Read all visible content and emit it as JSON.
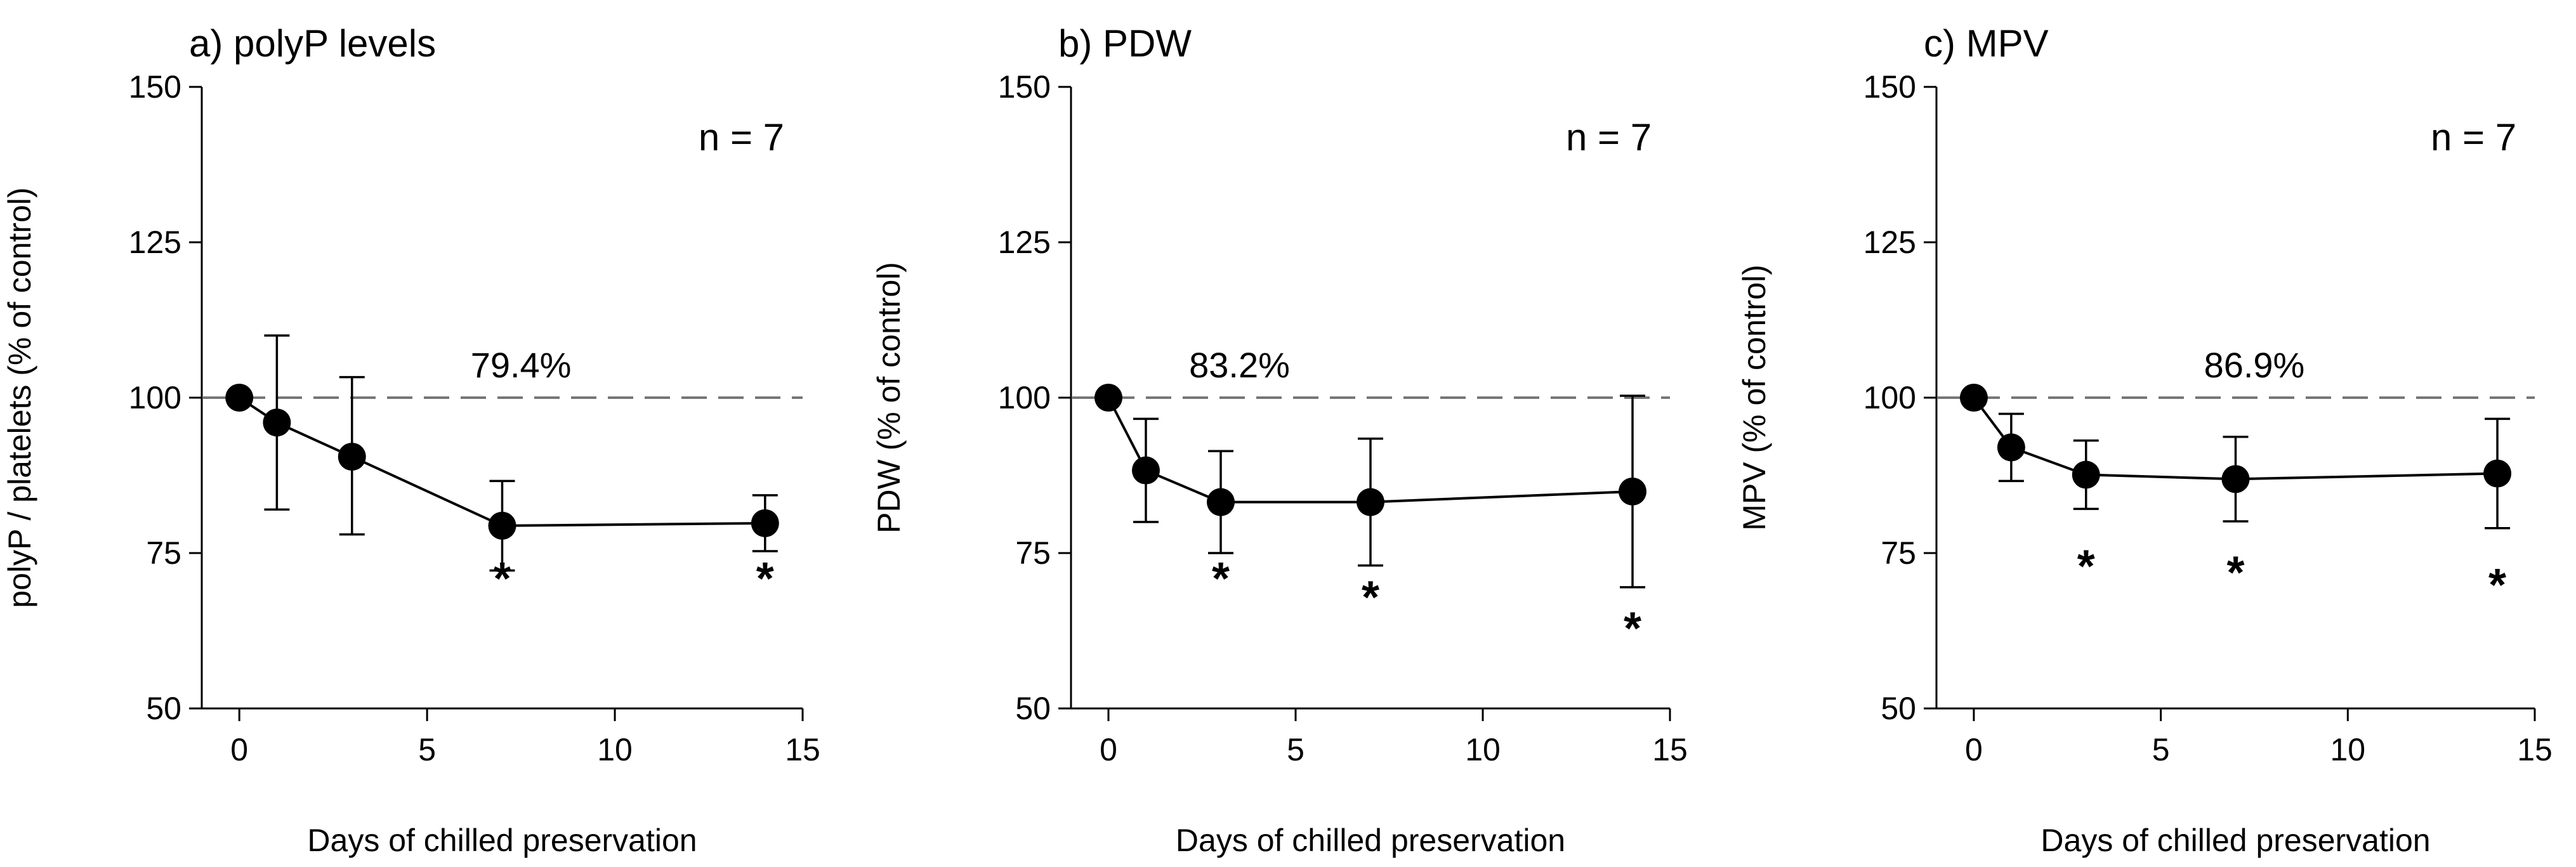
{
  "figure": {
    "shared_xlabel": "Days of chilled preservation"
  },
  "chart_data": [
    {
      "type": "line",
      "title": "a) polyP levels",
      "xlabel": "Days of chilled preservation",
      "ylabel": "polyP / platelets (% of control)",
      "xlim": [
        -1,
        15
      ],
      "ylim": [
        50,
        150
      ],
      "xticks": [
        0,
        5,
        10,
        15
      ],
      "yticks": [
        50,
        75,
        100,
        125,
        150
      ],
      "n_label": "n = 7",
      "reference_line": {
        "y": 100,
        "style": "dashed",
        "label": "79.4%",
        "label_x": 7.5
      },
      "series": [
        {
          "name": "polyP levels",
          "x": [
            0,
            1,
            3,
            7,
            14
          ],
          "y": [
            100,
            96,
            90.5,
            79.4,
            79.8
          ],
          "err_low": [
            0,
            14,
            12.5,
            7.2,
            4.5
          ],
          "err_high": [
            0,
            14,
            12.8,
            7.2,
            4.5
          ]
        }
      ],
      "significance": [
        {
          "x": 7,
          "y": 71,
          "label": "*"
        },
        {
          "x": 14,
          "y": 71,
          "label": "*"
        }
      ]
    },
    {
      "type": "line",
      "title": "b) PDW",
      "xlabel": "Days of chilled preservation",
      "ylabel": "PDW (% of control)",
      "xlim": [
        -1,
        15
      ],
      "ylim": [
        50,
        150
      ],
      "xticks": [
        0,
        5,
        10,
        15
      ],
      "yticks": [
        50,
        75,
        100,
        125,
        150
      ],
      "n_label": "n = 7",
      "reference_line": {
        "y": 100,
        "style": "dashed",
        "label": "83.2%",
        "label_x": 3.5
      },
      "series": [
        {
          "name": "PDW",
          "x": [
            0,
            1,
            3,
            7,
            14
          ],
          "y": [
            100,
            88.3,
            83.2,
            83.2,
            84.9
          ],
          "err_low": [
            0,
            8.3,
            8.2,
            10.2,
            15.4
          ],
          "err_high": [
            0,
            8.3,
            8.2,
            10.2,
            15.4
          ]
        }
      ],
      "significance": [
        {
          "x": 3,
          "y": 71,
          "label": "*"
        },
        {
          "x": 7,
          "y": 68,
          "label": "*"
        },
        {
          "x": 14,
          "y": 63,
          "label": "*"
        }
      ]
    },
    {
      "type": "line",
      "title": "c) MPV",
      "xlabel": "Days of chilled preservation",
      "ylabel": "MPV (% of control)",
      "xlim": [
        -1,
        15
      ],
      "ylim": [
        50,
        150
      ],
      "xticks": [
        0,
        5,
        10,
        15
      ],
      "yticks": [
        50,
        75,
        100,
        125,
        150
      ],
      "n_label": "n = 7",
      "reference_line": {
        "y": 100,
        "style": "dashed",
        "label": "86.9%",
        "label_x": 7.5
      },
      "series": [
        {
          "name": "MPV",
          "x": [
            0,
            1,
            3,
            7,
            14
          ],
          "y": [
            100,
            92,
            87.6,
            86.9,
            87.8
          ],
          "err_low": [
            0,
            5.4,
            5.5,
            6.8,
            8.8
          ],
          "err_high": [
            0,
            5.4,
            5.5,
            6.8,
            8.8
          ]
        }
      ],
      "significance": [
        {
          "x": 3,
          "y": 73,
          "label": "*"
        },
        {
          "x": 7,
          "y": 72,
          "label": "*"
        },
        {
          "x": 14,
          "y": 70,
          "label": "*"
        }
      ]
    }
  ]
}
